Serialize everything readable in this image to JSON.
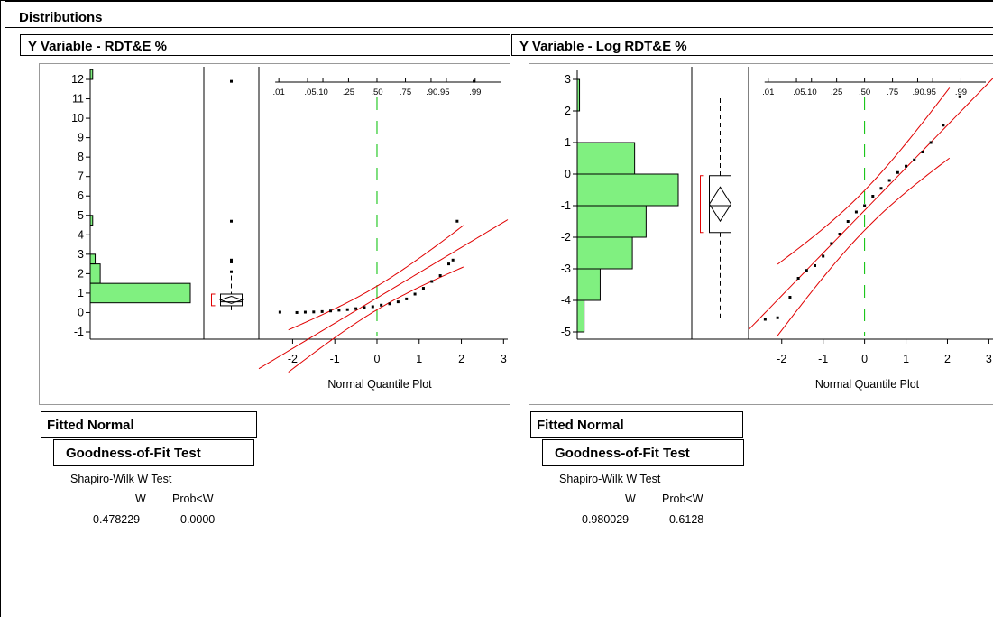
{
  "window": {
    "title": "Distributions"
  },
  "panels": [
    {
      "header": "Y Variable - RDT&E %",
      "y_ticks": [
        "12",
        "11",
        "10",
        "9",
        "8",
        "7",
        "6",
        "5",
        "4",
        "3",
        "2",
        "1",
        "0",
        "-1"
      ],
      "prob_ticks": [
        ".01",
        ".05.10",
        ".25",
        ".50",
        ".75",
        ".90.95",
        ".99"
      ],
      "x_ticks": [
        "-2",
        "-1",
        "0",
        "1",
        "2",
        "3"
      ],
      "x_label": "Normal Quantile Plot",
      "fitted_normal": "Fitted Normal",
      "gof_title": "Goodness-of-Fit Test",
      "test_name": "Shapiro-Wilk W Test",
      "col_w": "W",
      "col_p": "Prob<W",
      "w_value": "0.478229",
      "p_value": "0.0000"
    },
    {
      "header": "Y Variable - Log RDT&E %",
      "y_ticks": [
        "3",
        "2",
        "1",
        "0",
        "-1",
        "-2",
        "-3",
        "-4",
        "-5"
      ],
      "prob_ticks": [
        ".01",
        ".05.10",
        ".25",
        ".50",
        ".75",
        ".90.95",
        ".99"
      ],
      "x_ticks": [
        "-2",
        "-1",
        "0",
        "1",
        "2",
        "3"
      ],
      "x_label": "Normal Quantile Plot",
      "fitted_normal": "Fitted Normal",
      "gof_title": "Goodness-of-Fit Test",
      "test_name": "Shapiro-Wilk W Test",
      "col_w": "W",
      "col_p": "Prob<W",
      "w_value": "0.980029",
      "p_value": "0.6128"
    }
  ],
  "colors": {
    "histogram_fill": "#80F080",
    "fit_line": "#E00000",
    "median_line": "#00C000"
  },
  "chart_data": [
    {
      "type": "bar",
      "title": "",
      "variable": "RDT&E %",
      "orientation": "horizontal-histogram",
      "bins": [
        [
          12,
          12.5
        ],
        [
          4.5,
          5
        ],
        [
          2.5,
          3
        ],
        [
          1.5,
          2.5
        ],
        [
          0.5,
          1.5
        ]
      ],
      "bin_counts_relative": [
        1,
        1,
        2,
        4,
        40
      ],
      "ylim": [
        -1.3,
        12.5
      ],
      "boxplot": {
        "q1": 0.35,
        "median": 0.55,
        "q3": 0.95,
        "whisker_low": 0.1,
        "whisker_high": 1.9,
        "outliers": [
          2.1,
          2.6,
          2.7,
          4.7,
          11.9
        ]
      },
      "normal_quantile_points": [
        [
          -2.3,
          0.02
        ],
        [
          -1.9,
          0.0
        ],
        [
          -1.7,
          0.02
        ],
        [
          -1.5,
          0.03
        ],
        [
          -1.3,
          0.05
        ],
        [
          -1.1,
          0.08
        ],
        [
          -0.9,
          0.12
        ],
        [
          -0.7,
          0.15
        ],
        [
          -0.5,
          0.2
        ],
        [
          -0.3,
          0.26
        ],
        [
          -0.1,
          0.3
        ],
        [
          0.1,
          0.38
        ],
        [
          0.3,
          0.45
        ],
        [
          0.5,
          0.55
        ],
        [
          0.7,
          0.7
        ],
        [
          0.9,
          0.95
        ],
        [
          1.1,
          1.25
        ],
        [
          1.3,
          1.6
        ],
        [
          1.5,
          1.9
        ],
        [
          1.7,
          2.5
        ],
        [
          1.8,
          2.7
        ],
        [
          1.9,
          4.7
        ],
        [
          2.3,
          11.9
        ]
      ],
      "xlim": [
        -2.8,
        3.1
      ]
    },
    {
      "type": "bar",
      "title": "",
      "variable": "Log RDT&E %",
      "orientation": "horizontal-histogram",
      "bins": [
        [
          2,
          3
        ],
        [
          1,
          2
        ],
        [
          0,
          1
        ],
        [
          -1,
          0
        ],
        [
          -2,
          -1
        ],
        [
          -3,
          -2
        ],
        [
          -4,
          -3
        ],
        [
          -5,
          -4
        ]
      ],
      "bin_counts_relative": [
        1,
        0,
        25,
        44,
        30,
        24,
        10,
        3
      ],
      "ylim": [
        -5.2,
        3.1
      ],
      "boxplot": {
        "q1": -1.85,
        "median": -1.0,
        "q3": -0.05,
        "whisker_low": -4.6,
        "whisker_high": 2.4
      },
      "normal_quantile_points": [
        [
          -2.4,
          -4.6
        ],
        [
          -2.1,
          -4.55
        ],
        [
          -1.8,
          -3.9
        ],
        [
          -1.6,
          -3.3
        ],
        [
          -1.4,
          -3.05
        ],
        [
          -1.2,
          -2.9
        ],
        [
          -1.0,
          -2.6
        ],
        [
          -0.8,
          -2.2
        ],
        [
          -0.6,
          -1.9
        ],
        [
          -0.4,
          -1.5
        ],
        [
          -0.2,
          -1.2
        ],
        [
          0.0,
          -1.0
        ],
        [
          0.2,
          -0.7
        ],
        [
          0.4,
          -0.45
        ],
        [
          0.6,
          -0.2
        ],
        [
          0.8,
          0.05
        ],
        [
          1.0,
          0.25
        ],
        [
          1.2,
          0.45
        ],
        [
          1.4,
          0.7
        ],
        [
          1.6,
          1.0
        ],
        [
          1.9,
          1.55
        ],
        [
          2.3,
          2.45
        ]
      ],
      "xlim": [
        -2.8,
        3.1
      ]
    }
  ]
}
